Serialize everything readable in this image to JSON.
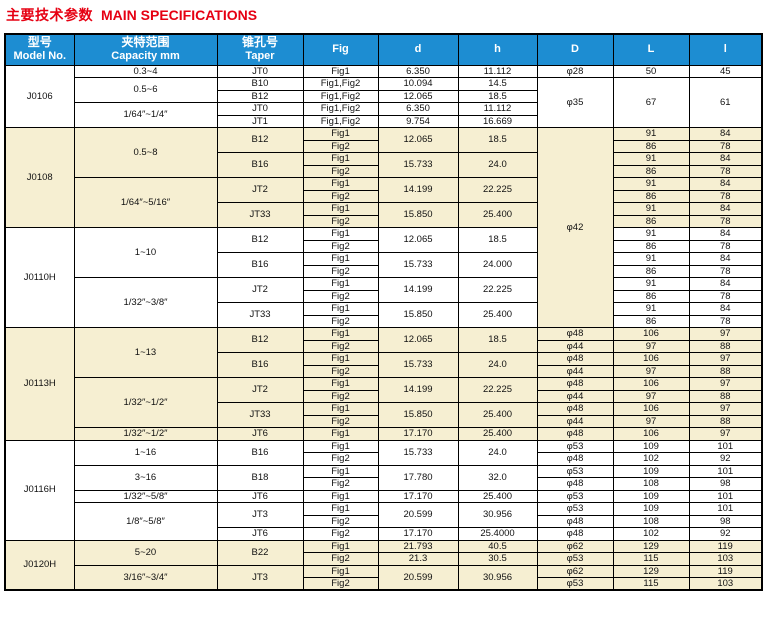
{
  "title": {
    "zh": "主要技术参数",
    "en": "MAIN SPECIFICATIONS"
  },
  "colors": {
    "header_blue": "#1d8dd2",
    "block_yellow": "#f6efd2",
    "title_red": "#e60012",
    "border": "#000000"
  },
  "table": {
    "columns": [
      {
        "zh": "型号",
        "en": "Model No."
      },
      {
        "zh": "夹特范围",
        "en": "Capacity mm"
      },
      {
        "zh": "锥孔号",
        "en": "Taper"
      },
      {
        "en": "Fig"
      },
      {
        "en": "d"
      },
      {
        "en": "h"
      },
      {
        "en": "D"
      },
      {
        "en": "L"
      },
      {
        "en": "l"
      }
    ],
    "rows": [
      {
        "bg": "w",
        "cells": [
          {
            "t": "J0106",
            "rs": 5
          },
          {
            "t": "0.3~4"
          },
          {
            "t": "JT0"
          },
          {
            "t": "Fig1"
          },
          {
            "t": "6.350"
          },
          {
            "t": "11.112"
          },
          {
            "t": "φ28"
          },
          {
            "t": "50"
          },
          {
            "t": "45"
          }
        ]
      },
      {
        "bg": "w",
        "cells": [
          {
            "t": "0.5~6",
            "rs": 2
          },
          {
            "t": "B10"
          },
          {
            "t": "Fig1,Fig2"
          },
          {
            "t": "10.094"
          },
          {
            "t": "14.5"
          },
          {
            "t": "φ35",
            "rs": 4
          },
          {
            "t": "67",
            "rs": 4
          },
          {
            "t": "61",
            "rs": 4
          }
        ]
      },
      {
        "bg": "w",
        "cells": [
          {
            "t": "B12"
          },
          {
            "t": "Fig1,Fig2"
          },
          {
            "t": "12.065"
          },
          {
            "t": "18.5"
          }
        ]
      },
      {
        "bg": "w",
        "cells": [
          {
            "t": "1/64″~1/4″",
            "rs": 2
          },
          {
            "t": "JT0"
          },
          {
            "t": "Fig1,Fig2"
          },
          {
            "t": "6.350"
          },
          {
            "t": "11.112"
          }
        ]
      },
      {
        "bg": "w",
        "cells": [
          {
            "t": "JT1"
          },
          {
            "t": "Fig1,Fig2"
          },
          {
            "t": "9.754"
          },
          {
            "t": "16.669"
          }
        ]
      },
      {
        "bg": "y",
        "cells": [
          {
            "t": "J0108",
            "rs": 8
          },
          {
            "t": "0.5~8",
            "rs": 4
          },
          {
            "t": "B12",
            "rs": 2
          },
          {
            "t": "Fig1"
          },
          {
            "t": "12.065",
            "rs": 2
          },
          {
            "t": "18.5",
            "rs": 2
          },
          {
            "t": "φ42",
            "rs": 16
          },
          {
            "t": "91"
          },
          {
            "t": "84"
          }
        ]
      },
      {
        "bg": "y",
        "cells": [
          {
            "t": "Fig2"
          },
          {
            "t": "86"
          },
          {
            "t": "78"
          }
        ]
      },
      {
        "bg": "y",
        "cells": [
          {
            "t": "B16",
            "rs": 2
          },
          {
            "t": "Fig1"
          },
          {
            "t": "15.733",
            "rs": 2
          },
          {
            "t": "24.0",
            "rs": 2
          },
          {
            "t": "91"
          },
          {
            "t": "84"
          }
        ]
      },
      {
        "bg": "y",
        "cells": [
          {
            "t": "Fig2"
          },
          {
            "t": "86"
          },
          {
            "t": "78"
          }
        ]
      },
      {
        "bg": "y",
        "cells": [
          {
            "t": "1/64″~5/16″",
            "rs": 4
          },
          {
            "t": "JT2",
            "rs": 2
          },
          {
            "t": "Fig1"
          },
          {
            "t": "14.199",
            "rs": 2
          },
          {
            "t": "22.225",
            "rs": 2
          },
          {
            "t": "91"
          },
          {
            "t": "84"
          }
        ]
      },
      {
        "bg": "y",
        "cells": [
          {
            "t": "Fig2"
          },
          {
            "t": "86"
          },
          {
            "t": "78"
          }
        ]
      },
      {
        "bg": "y",
        "cells": [
          {
            "t": "JT33",
            "rs": 2
          },
          {
            "t": "Fig1"
          },
          {
            "t": "15.850",
            "rs": 2
          },
          {
            "t": "25.400",
            "rs": 2
          },
          {
            "t": "91"
          },
          {
            "t": "84"
          }
        ]
      },
      {
        "bg": "y",
        "cells": [
          {
            "t": "Fig2"
          },
          {
            "t": "86"
          },
          {
            "t": "78"
          }
        ]
      },
      {
        "bg": "w",
        "cells": [
          {
            "t": "J0110H",
            "rs": 8
          },
          {
            "t": "1~10",
            "rs": 4
          },
          {
            "t": "B12",
            "rs": 2
          },
          {
            "t": "Fig1"
          },
          {
            "t": "12.065",
            "rs": 2
          },
          {
            "t": "18.5",
            "rs": 2
          },
          {
            "t": "91"
          },
          {
            "t": "84"
          }
        ]
      },
      {
        "bg": "w",
        "cells": [
          {
            "t": "Fig2"
          },
          {
            "t": "86"
          },
          {
            "t": "78"
          }
        ]
      },
      {
        "bg": "w",
        "cells": [
          {
            "t": "B16",
            "rs": 2
          },
          {
            "t": "Fig1"
          },
          {
            "t": "15.733",
            "rs": 2
          },
          {
            "t": "24.000",
            "rs": 2
          },
          {
            "t": "91"
          },
          {
            "t": "84"
          }
        ]
      },
      {
        "bg": "w",
        "cells": [
          {
            "t": "Fig2"
          },
          {
            "t": "86"
          },
          {
            "t": "78"
          }
        ]
      },
      {
        "bg": "w",
        "cells": [
          {
            "t": "1/32″~3/8″",
            "rs": 4
          },
          {
            "t": "JT2",
            "rs": 2
          },
          {
            "t": "Fig1"
          },
          {
            "t": "14.199",
            "rs": 2
          },
          {
            "t": "22.225",
            "rs": 2
          },
          {
            "t": "91"
          },
          {
            "t": "84"
          }
        ]
      },
      {
        "bg": "w",
        "cells": [
          {
            "t": "Fig2"
          },
          {
            "t": "86"
          },
          {
            "t": "78"
          }
        ]
      },
      {
        "bg": "w",
        "cells": [
          {
            "t": "JT33",
            "rs": 2
          },
          {
            "t": "Fig1"
          },
          {
            "t": "15.850",
            "rs": 2
          },
          {
            "t": "25.400",
            "rs": 2
          },
          {
            "t": "91"
          },
          {
            "t": "84"
          }
        ]
      },
      {
        "bg": "w",
        "cells": [
          {
            "t": "Fig2"
          },
          {
            "t": "86"
          },
          {
            "t": "78"
          }
        ]
      },
      {
        "bg": "y",
        "cells": [
          {
            "t": "J0113H",
            "rs": 9
          },
          {
            "t": "1~13",
            "rs": 4
          },
          {
            "t": "B12",
            "rs": 2
          },
          {
            "t": "Fig1"
          },
          {
            "t": "12.065",
            "rs": 2
          },
          {
            "t": "18.5",
            "rs": 2
          },
          {
            "t": "φ48"
          },
          {
            "t": "106"
          },
          {
            "t": "97"
          }
        ]
      },
      {
        "bg": "y",
        "cells": [
          {
            "t": "Fig2"
          },
          {
            "t": "φ44"
          },
          {
            "t": "97"
          },
          {
            "t": "88"
          }
        ]
      },
      {
        "bg": "y",
        "cells": [
          {
            "t": "B16",
            "rs": 2
          },
          {
            "t": "Fig1"
          },
          {
            "t": "15.733",
            "rs": 2
          },
          {
            "t": "24.0",
            "rs": 2
          },
          {
            "t": "φ48"
          },
          {
            "t": "106"
          },
          {
            "t": "97"
          }
        ]
      },
      {
        "bg": "y",
        "cells": [
          {
            "t": "Fig2"
          },
          {
            "t": "φ44"
          },
          {
            "t": "97"
          },
          {
            "t": "88"
          }
        ]
      },
      {
        "bg": "y",
        "cells": [
          {
            "t": "1/32″~1/2″",
            "rs": 4
          },
          {
            "t": "JT2",
            "rs": 2
          },
          {
            "t": "Fig1"
          },
          {
            "t": "14.199",
            "rs": 2
          },
          {
            "t": "22.225",
            "rs": 2
          },
          {
            "t": "φ48"
          },
          {
            "t": "106"
          },
          {
            "t": "97"
          }
        ]
      },
      {
        "bg": "y",
        "cells": [
          {
            "t": "Fig2"
          },
          {
            "t": "φ44"
          },
          {
            "t": "97"
          },
          {
            "t": "88"
          }
        ]
      },
      {
        "bg": "y",
        "cells": [
          {
            "t": "JT33",
            "rs": 2
          },
          {
            "t": "Fig1"
          },
          {
            "t": "15.850",
            "rs": 2
          },
          {
            "t": "25.400",
            "rs": 2
          },
          {
            "t": "φ48"
          },
          {
            "t": "106"
          },
          {
            "t": "97"
          }
        ]
      },
      {
        "bg": "y",
        "cells": [
          {
            "t": "Fig2"
          },
          {
            "t": "φ44"
          },
          {
            "t": "97"
          },
          {
            "t": "88"
          }
        ]
      },
      {
        "bg": "y",
        "cells": [
          {
            "t": "1/32″~1/2″"
          },
          {
            "t": "JT6"
          },
          {
            "t": "Fig1"
          },
          {
            "t": "17.170"
          },
          {
            "t": "25.400"
          },
          {
            "t": "φ48"
          },
          {
            "t": "106"
          },
          {
            "t": "97"
          }
        ]
      },
      {
        "bg": "w",
        "cells": [
          {
            "t": "J0116H",
            "rs": 8
          },
          {
            "t": "1~16",
            "rs": 2
          },
          {
            "t": "B16",
            "rs": 2
          },
          {
            "t": "Fig1"
          },
          {
            "t": "15.733",
            "rs": 2
          },
          {
            "t": "24.0",
            "rs": 2
          },
          {
            "t": "φ53"
          },
          {
            "t": "109"
          },
          {
            "t": "101"
          }
        ]
      },
      {
        "bg": "w",
        "cells": [
          {
            "t": "Fig2"
          },
          {
            "t": "φ48"
          },
          {
            "t": "102"
          },
          {
            "t": "92"
          }
        ]
      },
      {
        "bg": "w",
        "cells": [
          {
            "t": "3~16",
            "rs": 2
          },
          {
            "t": "B18",
            "rs": 2
          },
          {
            "t": "Fig1"
          },
          {
            "t": "17.780",
            "rs": 2
          },
          {
            "t": "32.0",
            "rs": 2
          },
          {
            "t": "φ53"
          },
          {
            "t": "109"
          },
          {
            "t": "101"
          }
        ]
      },
      {
        "bg": "w",
        "cells": [
          {
            "t": "Fig2"
          },
          {
            "t": "φ48"
          },
          {
            "t": "108"
          },
          {
            "t": "98"
          }
        ]
      },
      {
        "bg": "w",
        "cells": [
          {
            "t": "1/32″~5/8″"
          },
          {
            "t": "JT6"
          },
          {
            "t": "Fig1"
          },
          {
            "t": "17.170"
          },
          {
            "t": "25.400"
          },
          {
            "t": "φ53"
          },
          {
            "t": "109"
          },
          {
            "t": "101"
          }
        ]
      },
      {
        "bg": "w",
        "cells": [
          {
            "t": "1/8″~5/8″",
            "rs": 3
          },
          {
            "t": "JT3",
            "rs": 2
          },
          {
            "t": "Fig1"
          },
          {
            "t": "20.599",
            "rs": 2
          },
          {
            "t": "30.956",
            "rs": 2
          },
          {
            "t": "φ53"
          },
          {
            "t": "109"
          },
          {
            "t": "101"
          }
        ]
      },
      {
        "bg": "w",
        "cells": [
          {
            "t": "Fig2"
          },
          {
            "t": "φ48"
          },
          {
            "t": "108"
          },
          {
            "t": "98"
          }
        ]
      },
      {
        "bg": "w",
        "cells": [
          {
            "t": "JT6"
          },
          {
            "t": "Fig2"
          },
          {
            "t": "17.170"
          },
          {
            "t": "25.4000"
          },
          {
            "t": "φ48"
          },
          {
            "t": "102"
          },
          {
            "t": "92"
          }
        ]
      },
      {
        "bg": "y",
        "cells": [
          {
            "t": "J0120H",
            "rs": 4
          },
          {
            "t": "5~20",
            "rs": 2
          },
          {
            "t": "B22",
            "rs": 2
          },
          {
            "t": "Fig1"
          },
          {
            "t": "21.793"
          },
          {
            "t": "40.5"
          },
          {
            "t": "φ62"
          },
          {
            "t": "129"
          },
          {
            "t": "119"
          }
        ]
      },
      {
        "bg": "y",
        "cells": [
          {
            "t": "Fig2"
          },
          {
            "t": "21.3"
          },
          {
            "t": "30.5"
          },
          {
            "t": "φ53"
          },
          {
            "t": "115"
          },
          {
            "t": "103"
          }
        ]
      },
      {
        "bg": "y",
        "cells": [
          {
            "t": "3/16″~3/4″",
            "rs": 2
          },
          {
            "t": "JT3",
            "rs": 2
          },
          {
            "t": "Fig1"
          },
          {
            "t": "20.599",
            "rs": 2
          },
          {
            "t": "30.956",
            "rs": 2
          },
          {
            "t": "φ62"
          },
          {
            "t": "129"
          },
          {
            "t": "119"
          }
        ]
      },
      {
        "bg": "y",
        "cells": [
          {
            "t": "Fig2"
          },
          {
            "t": "φ53"
          },
          {
            "t": "115"
          },
          {
            "t": "103"
          }
        ]
      }
    ]
  }
}
